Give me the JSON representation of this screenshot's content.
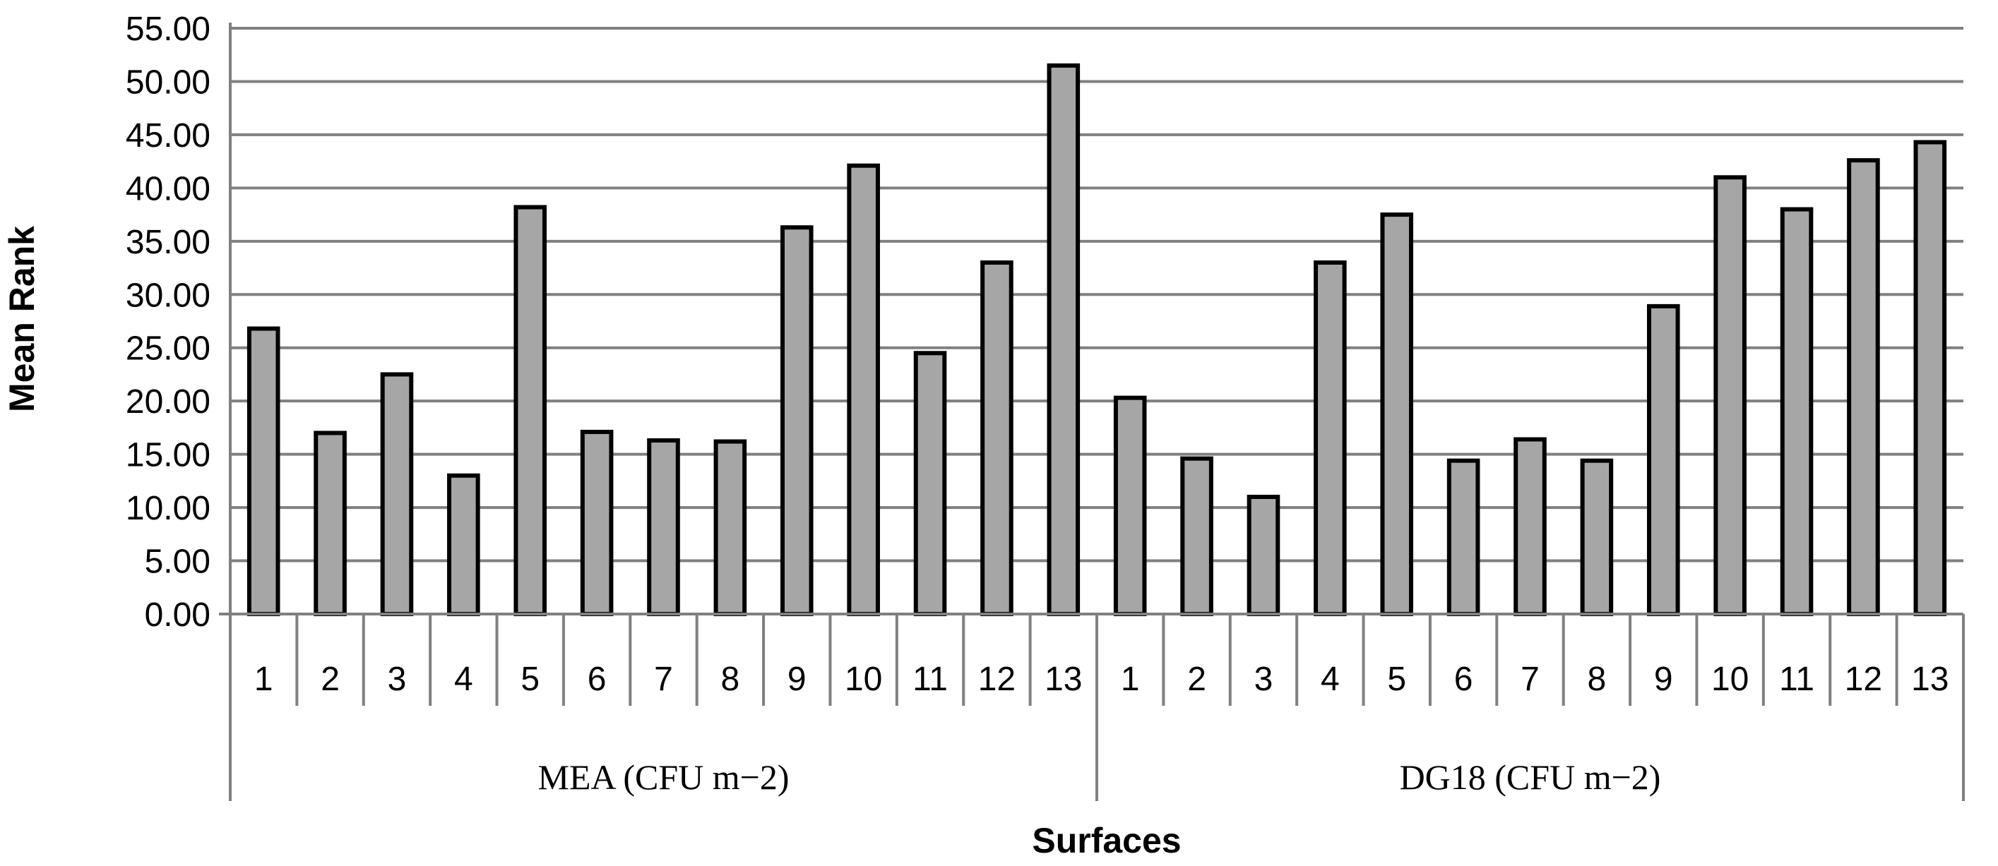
{
  "chart_data": {
    "type": "bar",
    "ylabel": "Mean Rank",
    "xlabel": "Surfaces",
    "ylim": [
      0,
      55
    ],
    "y_ticks": [
      "0.00",
      "5.00",
      "10.00",
      "15.00",
      "20.00",
      "25.00",
      "30.00",
      "35.00",
      "40.00",
      "45.00",
      "50.00",
      "55.00"
    ],
    "grid": true,
    "bar_color": "#a6a6a6",
    "bar_edge_color": "#000000",
    "grid_color": "#808080",
    "groups": [
      {
        "label": "MEA (CFU m−2)",
        "categories": [
          "1",
          "2",
          "3",
          "4",
          "5",
          "6",
          "7",
          "8",
          "9",
          "10",
          "11",
          "12",
          "13"
        ],
        "values": [
          26.8,
          17.0,
          22.5,
          13.0,
          38.2,
          17.1,
          16.3,
          16.2,
          36.3,
          42.1,
          24.5,
          33.0,
          51.5
        ]
      },
      {
        "label": "DG18 (CFU m−2)",
        "categories": [
          "1",
          "2",
          "3",
          "4",
          "5",
          "6",
          "7",
          "8",
          "9",
          "10",
          "11",
          "12",
          "13"
        ],
        "values": [
          20.3,
          14.6,
          11.0,
          33.0,
          37.5,
          14.4,
          16.4,
          14.4,
          28.9,
          41.0,
          38.0,
          42.6,
          44.3
        ]
      }
    ]
  }
}
